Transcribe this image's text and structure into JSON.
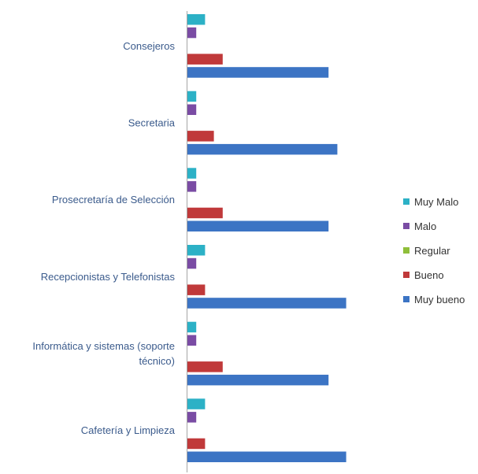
{
  "chart_data": {
    "type": "bar",
    "orientation": "horizontal",
    "categories": [
      "Consejeros",
      "Secretaria",
      "Prosecretaría de Selección",
      "Recepcionistas y Telefonistas",
      "Informática y sistemas (soporte técnico)",
      "Cafetería y Limpieza"
    ],
    "category_label_lines": [
      [
        "Consejeros"
      ],
      [
        "Secretaria"
      ],
      [
        "Prosecretaría de Selección"
      ],
      [
        "Recepcionistas y Telefonistas"
      ],
      [
        "Informática y sistemas (soporte",
        "técnico)"
      ],
      [
        "Cafetería y Limpieza"
      ]
    ],
    "series": [
      {
        "name": "Muy Malo",
        "color": "#2cb1c6",
        "values": [
          2,
          1,
          1,
          2,
          1,
          2
        ]
      },
      {
        "name": "Malo",
        "color": "#7a4ca4",
        "values": [
          1,
          1,
          1,
          1,
          1,
          1
        ]
      },
      {
        "name": "Regular",
        "color": "#8fbf3a",
        "values": [
          0,
          0,
          0,
          0,
          0,
          0
        ]
      },
      {
        "name": "Bueno",
        "color": "#c0393a",
        "values": [
          4,
          3,
          4,
          2,
          4,
          2
        ]
      },
      {
        "name": "Muy bueno",
        "color": "#3c74c4",
        "values": [
          16,
          17,
          16,
          18,
          16,
          18
        ]
      }
    ],
    "xlim": [
      0,
      30
    ],
    "grid": false,
    "legend_position": "right"
  }
}
